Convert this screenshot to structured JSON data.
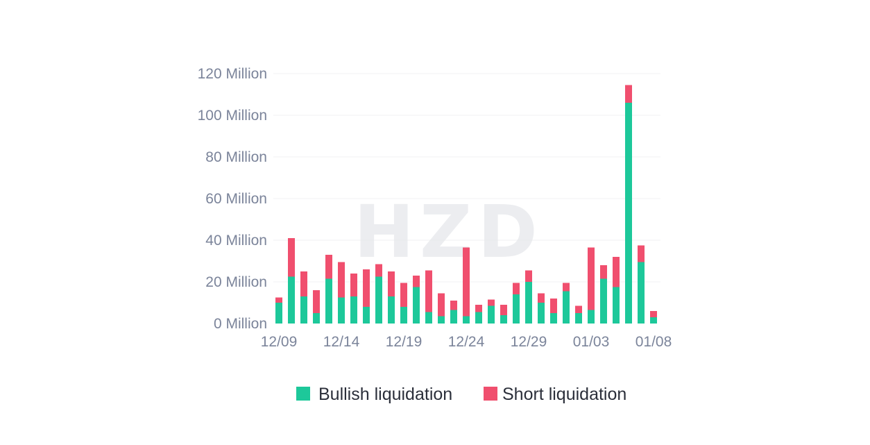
{
  "chart_data": {
    "type": "bar",
    "stacked": true,
    "watermark": "HZD",
    "categories": [
      "12/09",
      "12/10",
      "12/11",
      "12/12",
      "12/13",
      "12/14",
      "12/15",
      "12/16",
      "12/17",
      "12/18",
      "12/19",
      "12/20",
      "12/21",
      "12/22",
      "12/23",
      "12/24",
      "12/25",
      "12/26",
      "12/27",
      "12/28",
      "12/29",
      "12/30",
      "12/31",
      "01/01",
      "01/02",
      "01/03",
      "01/04",
      "01/05",
      "01/06",
      "01/07",
      "01/08"
    ],
    "x_tick_labels": [
      "12/09",
      "12/14",
      "12/19",
      "12/24",
      "12/29",
      "01/03",
      "01/08"
    ],
    "x_tick_categories": [
      "12/09",
      "12/14",
      "12/19",
      "12/24",
      "12/29",
      "01/03",
      "01/08"
    ],
    "y_tick_labels": [
      "0 Million",
      "20 Million",
      "40 Million",
      "60 Million",
      "80 Million",
      "100 Million",
      "120 Million"
    ],
    "ylim": [
      0,
      120
    ],
    "y_unit": "Million",
    "grid": true,
    "legend_position": "bottom",
    "series": [
      {
        "name": "Bullish liquidation",
        "color": "#1dc89a",
        "values": [
          10,
          22.5,
          13,
          5,
          21.5,
          12.5,
          13,
          8,
          22.5,
          13,
          8,
          17.5,
          5.5,
          3.5,
          6.5,
          3.5,
          5.5,
          8.5,
          4,
          14,
          20,
          10,
          5,
          15.5,
          5,
          6.5,
          21.5,
          17.5,
          106,
          29.5,
          3
        ]
      },
      {
        "name": "Short liquidation",
        "color": "#f04f6e",
        "values": [
          2.5,
          18.5,
          12,
          11,
          11.5,
          17,
          11,
          18,
          6,
          12,
          11.5,
          5.5,
          20,
          11,
          4.5,
          33,
          3.5,
          3,
          5,
          5.5,
          5.5,
          4.5,
          7,
          4,
          3.5,
          30,
          6.5,
          14.5,
          8.5,
          8,
          3
        ]
      }
    ]
  }
}
